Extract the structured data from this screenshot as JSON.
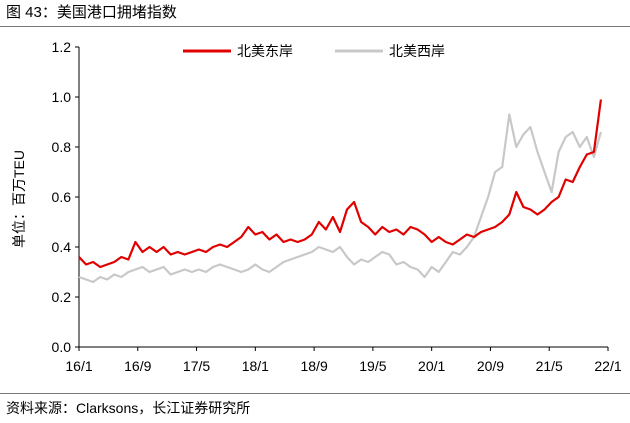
{
  "figure_title": "图 43：美国港口拥堵指数",
  "source_note": "资料来源：Clarksons，长江证券研究所",
  "chart_data": {
    "type": "line",
    "title": "",
    "ylabel": "单位：百万TEU",
    "xlabel": "",
    "ylim": [
      0,
      1.2
    ],
    "yticks": [
      0,
      0.2,
      0.4,
      0.6,
      0.8,
      1.0,
      1.2
    ],
    "ytick_labels": [
      "0.0",
      "0.2",
      "0.4",
      "0.6",
      "0.8",
      "1.0",
      "1.2"
    ],
    "xlim": [
      "2016-01",
      "2022-04"
    ],
    "xtick_labels": [
      "16/1",
      "16/9",
      "17/5",
      "18/1",
      "18/9",
      "19/5",
      "20/1",
      "20/9",
      "21/5",
      "22/1"
    ],
    "grid": false,
    "legend_position": "top",
    "series": [
      {
        "name": "北美东岸",
        "color": "#e00000",
        "x": [
          "2016-01",
          "2016-02",
          "2016-03",
          "2016-04",
          "2016-05",
          "2016-06",
          "2016-07",
          "2016-08",
          "2016-09",
          "2016-10",
          "2016-11",
          "2016-12",
          "2017-01",
          "2017-02",
          "2017-03",
          "2017-04",
          "2017-05",
          "2017-06",
          "2017-07",
          "2017-08",
          "2017-09",
          "2017-10",
          "2017-11",
          "2017-12",
          "2018-01",
          "2018-02",
          "2018-03",
          "2018-04",
          "2018-05",
          "2018-06",
          "2018-07",
          "2018-08",
          "2018-09",
          "2018-10",
          "2018-11",
          "2018-12",
          "2019-01",
          "2019-02",
          "2019-03",
          "2019-04",
          "2019-05",
          "2019-06",
          "2019-07",
          "2019-08",
          "2019-09",
          "2019-10",
          "2019-11",
          "2019-12",
          "2020-01",
          "2020-02",
          "2020-03",
          "2020-04",
          "2020-05",
          "2020-06",
          "2020-07",
          "2020-08",
          "2020-09",
          "2020-10",
          "2020-11",
          "2020-12",
          "2021-01",
          "2021-02",
          "2021-03",
          "2021-04",
          "2021-05",
          "2021-06",
          "2021-07",
          "2021-08",
          "2021-09",
          "2021-10",
          "2021-11",
          "2021-12",
          "2022-01",
          "2022-02",
          "2022-03"
        ],
        "values": [
          0.36,
          0.33,
          0.34,
          0.32,
          0.33,
          0.34,
          0.36,
          0.35,
          0.42,
          0.38,
          0.4,
          0.38,
          0.4,
          0.37,
          0.38,
          0.37,
          0.38,
          0.39,
          0.38,
          0.4,
          0.41,
          0.4,
          0.42,
          0.44,
          0.48,
          0.45,
          0.46,
          0.43,
          0.45,
          0.42,
          0.43,
          0.42,
          0.43,
          0.45,
          0.5,
          0.47,
          0.52,
          0.46,
          0.55,
          0.58,
          0.5,
          0.48,
          0.45,
          0.48,
          0.46,
          0.47,
          0.45,
          0.48,
          0.47,
          0.45,
          0.42,
          0.44,
          0.42,
          0.41,
          0.43,
          0.45,
          0.44,
          0.46,
          0.47,
          0.48,
          0.5,
          0.53,
          0.62,
          0.56,
          0.55,
          0.53,
          0.55,
          0.58,
          0.6,
          0.67,
          0.66,
          0.72,
          0.77,
          0.78,
          0.99
        ]
      },
      {
        "name": "北美西岸",
        "color": "#c8c8c8",
        "x": [
          "2016-01",
          "2016-02",
          "2016-03",
          "2016-04",
          "2016-05",
          "2016-06",
          "2016-07",
          "2016-08",
          "2016-09",
          "2016-10",
          "2016-11",
          "2016-12",
          "2017-01",
          "2017-02",
          "2017-03",
          "2017-04",
          "2017-05",
          "2017-06",
          "2017-07",
          "2017-08",
          "2017-09",
          "2017-10",
          "2017-11",
          "2017-12",
          "2018-01",
          "2018-02",
          "2018-03",
          "2018-04",
          "2018-05",
          "2018-06",
          "2018-07",
          "2018-08",
          "2018-09",
          "2018-10",
          "2018-11",
          "2018-12",
          "2019-01",
          "2019-02",
          "2019-03",
          "2019-04",
          "2019-05",
          "2019-06",
          "2019-07",
          "2019-08",
          "2019-09",
          "2019-10",
          "2019-11",
          "2019-12",
          "2020-01",
          "2020-02",
          "2020-03",
          "2020-04",
          "2020-05",
          "2020-06",
          "2020-07",
          "2020-08",
          "2020-09",
          "2020-10",
          "2020-11",
          "2020-12",
          "2021-01",
          "2021-02",
          "2021-03",
          "2021-04",
          "2021-05",
          "2021-06",
          "2021-07",
          "2021-08",
          "2021-09",
          "2021-10",
          "2021-11",
          "2021-12",
          "2022-01",
          "2022-02",
          "2022-03"
        ],
        "values": [
          0.28,
          0.27,
          0.26,
          0.28,
          0.27,
          0.29,
          0.28,
          0.3,
          0.31,
          0.32,
          0.3,
          0.31,
          0.32,
          0.29,
          0.3,
          0.31,
          0.3,
          0.31,
          0.3,
          0.32,
          0.33,
          0.32,
          0.31,
          0.3,
          0.31,
          0.33,
          0.31,
          0.3,
          0.32,
          0.34,
          0.35,
          0.36,
          0.37,
          0.38,
          0.4,
          0.39,
          0.38,
          0.4,
          0.36,
          0.33,
          0.35,
          0.34,
          0.36,
          0.38,
          0.37,
          0.33,
          0.34,
          0.32,
          0.31,
          0.28,
          0.32,
          0.3,
          0.34,
          0.38,
          0.37,
          0.4,
          0.44,
          0.52,
          0.6,
          0.7,
          0.72,
          0.93,
          0.8,
          0.85,
          0.88,
          0.78,
          0.7,
          0.62,
          0.78,
          0.84,
          0.86,
          0.8,
          0.84,
          0.76,
          0.86
        ]
      }
    ]
  }
}
